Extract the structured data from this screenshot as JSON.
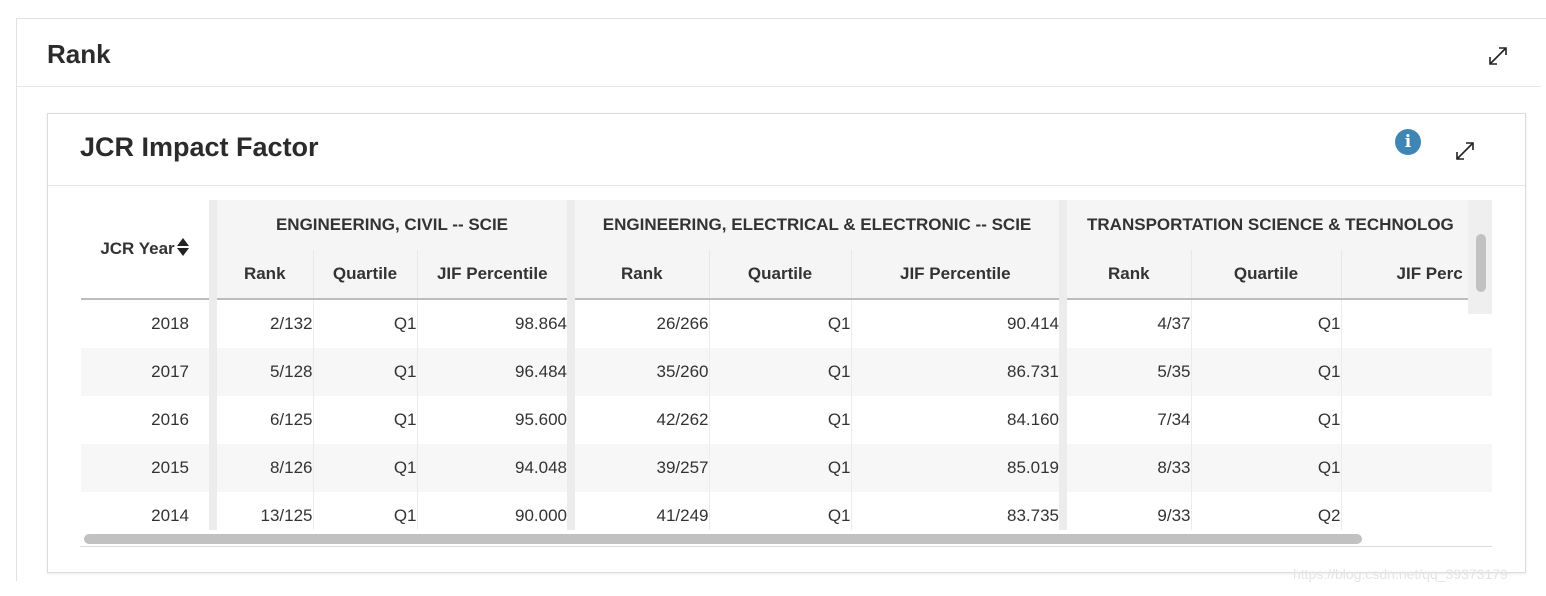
{
  "outer": {
    "title": "Rank"
  },
  "jif": {
    "title": "JCR Impact Factor",
    "info_glyph": "i",
    "year_header": "JCR Year",
    "categories": [
      "ENGINEERING, CIVIL -- SCIE",
      "ENGINEERING, ELECTRICAL & ELECTRONIC -- SCIE",
      "TRANSPORTATION SCIENCE & TECHNOLOG"
    ],
    "subheaders": [
      "Rank",
      "Quartile",
      "JIF Percentile"
    ],
    "last_subheader_partial": "JIF Perc",
    "rows": [
      [
        "2018",
        "2/132",
        "Q1",
        "98.864",
        "26/266",
        "Q1",
        "90.414",
        "4/37",
        "Q1",
        ""
      ],
      [
        "2017",
        "5/128",
        "Q1",
        "96.484",
        "35/260",
        "Q1",
        "86.731",
        "5/35",
        "Q1",
        ""
      ],
      [
        "2016",
        "6/125",
        "Q1",
        "95.600",
        "42/262",
        "Q1",
        "84.160",
        "7/34",
        "Q1",
        ""
      ],
      [
        "2015",
        "8/126",
        "Q1",
        "94.048",
        "39/257",
        "Q1",
        "85.019",
        "8/33",
        "Q1",
        ""
      ],
      [
        "2014",
        "13/125",
        "Q1",
        "90.000",
        "41/249",
        "Q1",
        "83.735",
        "9/33",
        "Q2",
        ""
      ]
    ]
  },
  "icons": {
    "expand": "expand-icon",
    "info": "info-icon",
    "sort": "sort-icon"
  },
  "watermark": "https://blog.csdn.net/qq_39373179"
}
